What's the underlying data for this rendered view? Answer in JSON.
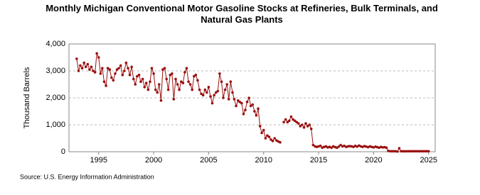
{
  "chart_data": {
    "type": "line",
    "title": "Monthly Michigan Conventional Motor Gasoline Stocks at Refineries, Bulk Terminals, and Natural Gas Plants",
    "y_label": "Thousand Barrels",
    "source": "Source: U.S. Energy Information Administration",
    "color": "#9b1010",
    "grid": true,
    "xlim": [
      1992.3,
      2025.6
    ],
    "xticks": [
      1995,
      2000,
      2005,
      2010,
      2015,
      2020,
      2025
    ],
    "ylim": [
      0,
      4000
    ],
    "yticks": [
      0,
      {
        "value": 1000,
        "label": "1,000"
      },
      {
        "value": 2000,
        "label": "2,000"
      },
      {
        "value": 3000,
        "label": "3,000"
      },
      {
        "value": 4000,
        "label": "4,000"
      }
    ],
    "x": [
      1993,
      1993.17,
      1993.33,
      1993.5,
      1993.67,
      1993.83,
      1994,
      1994.17,
      1994.33,
      1994.5,
      1994.67,
      1994.83,
      1995,
      1995.17,
      1995.33,
      1995.5,
      1995.67,
      1995.83,
      1996,
      1996.17,
      1996.33,
      1996.5,
      1996.67,
      1996.83,
      1997,
      1997.17,
      1997.33,
      1997.5,
      1997.67,
      1997.83,
      1998,
      1998.17,
      1998.33,
      1998.5,
      1998.67,
      1998.83,
      1999,
      1999.17,
      1999.33,
      1999.5,
      1999.67,
      1999.83,
      2000,
      2000.17,
      2000.33,
      2000.5,
      2000.67,
      2000.83,
      2001,
      2001.17,
      2001.33,
      2001.5,
      2001.67,
      2001.83,
      2002,
      2002.17,
      2002.33,
      2002.5,
      2002.67,
      2002.83,
      2003,
      2003.17,
      2003.33,
      2003.5,
      2003.67,
      2003.83,
      2004,
      2004.17,
      2004.33,
      2004.5,
      2004.67,
      2004.83,
      2005,
      2005.17,
      2005.33,
      2005.5,
      2005.67,
      2005.83,
      2006,
      2006.17,
      2006.33,
      2006.5,
      2006.67,
      2006.83,
      2007,
      2007.17,
      2007.33,
      2007.5,
      2007.67,
      2007.83,
      2008,
      2008.17,
      2008.33,
      2008.5,
      2008.67,
      2008.83,
      2009,
      2009.17,
      2009.33,
      2009.5,
      2009.67,
      2009.83,
      2010,
      2010.17,
      2010.33,
      2010.5,
      2010.67,
      2010.83,
      2011,
      2011.17,
      2011.33,
      2011.5,
      2011.67,
      2011.83,
      2012,
      2012.17,
      2012.33,
      2012.5,
      2012.67,
      2012.83,
      2013,
      2013.17,
      2013.33,
      2013.5,
      2013.67,
      2013.83,
      2014,
      2014.17,
      2014.33,
      2014.5,
      2014.67,
      2014.83,
      2015,
      2015.17,
      2015.33,
      2015.5,
      2015.67,
      2015.83,
      2016,
      2016.17,
      2016.33,
      2016.5,
      2016.67,
      2016.83,
      2017,
      2017.17,
      2017.33,
      2017.5,
      2017.67,
      2017.83,
      2018,
      2018.17,
      2018.33,
      2018.5,
      2018.67,
      2018.83,
      2019,
      2019.17,
      2019.33,
      2019.5,
      2019.67,
      2019.83,
      2020,
      2020.17,
      2020.33,
      2020.5,
      2020.67,
      2020.83,
      2021,
      2021.17,
      2021.33,
      2021.5,
      2021.67,
      2021.83,
      2022,
      2022.17,
      2022.33,
      2022.5,
      2022.67,
      2022.83,
      2023,
      2023.17,
      2023.33,
      2023.5,
      2023.67,
      2023.83,
      2024,
      2024.17,
      2024.33,
      2024.5,
      2024.67,
      2024.83,
      2025
    ],
    "values": [
      3450,
      3000,
      3200,
      3100,
      3300,
      3150,
      3250,
      3050,
      3150,
      3000,
      2950,
      3650,
      3500,
      2900,
      3100,
      2600,
      2450,
      3100,
      3050,
      2750,
      2650,
      2900,
      3050,
      3100,
      3200,
      2850,
      3000,
      3300,
      3100,
      2850,
      3150,
      2700,
      2500,
      2800,
      2850,
      2600,
      2700,
      2400,
      2550,
      2300,
      2600,
      3100,
      2900,
      2300,
      2200,
      2500,
      1900,
      3050,
      3100,
      2700,
      2300,
      2850,
      2900,
      1950,
      2700,
      2500,
      2300,
      2600,
      2550,
      2950,
      3100,
      2600,
      2500,
      2300,
      2800,
      2850,
      2650,
      2300,
      2150,
      2100,
      2300,
      2200,
      2400,
      2050,
      1800,
      2100,
      2200,
      2250,
      2900,
      2600,
      2000,
      2300,
      2500,
      1950,
      2600,
      2200,
      1950,
      1700,
      1900,
      1850,
      1800,
      1400,
      1550,
      1850,
      2000,
      1700,
      1750,
      1500,
      1350,
      1600,
      950,
      700,
      800,
      500,
      600,
      550,
      450,
      400,
      500,
      420,
      380,
      350,
      null,
      1100,
      1200,
      1100,
      1150,
      1300,
      1200,
      1150,
      1100,
      1050,
      950,
      1000,
      900,
      1050,
      950,
      1000,
      850,
      250,
      200,
      180,
      200,
      220,
      150,
      180,
      200,
      160,
      180,
      150,
      200,
      170,
      150,
      190,
      250,
      200,
      220,
      180,
      200,
      210,
      200,
      180,
      220,
      190,
      230,
      200,
      180,
      210,
      190,
      170,
      200,
      180,
      160,
      190,
      170,
      150,
      180,
      160,
      170,
      150,
      30,
      20,
      20,
      20,
      20,
      10,
      130,
      20,
      20,
      15,
      20,
      20,
      20,
      20,
      20,
      20,
      20,
      20,
      20,
      20,
      20,
      20,
      20
    ]
  }
}
